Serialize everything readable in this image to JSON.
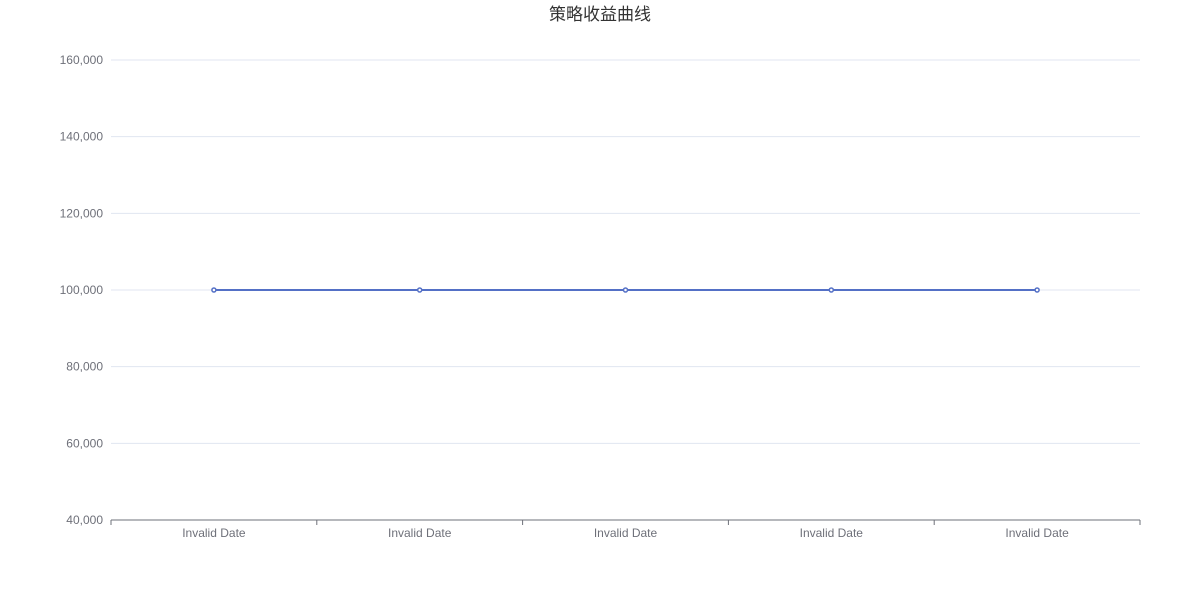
{
  "chart_data": {
    "type": "line",
    "title": "策略收益曲线",
    "xlabel": "",
    "ylabel": "",
    "categories": [
      "Invalid Date",
      "Invalid Date",
      "Invalid Date",
      "Invalid Date",
      "Invalid Date"
    ],
    "series": [
      {
        "values": [
          100000,
          100000,
          100000,
          100000,
          100000
        ]
      }
    ],
    "ylim": [
      40000,
      160000
    ],
    "yticks": [
      "40,000",
      "60,000",
      "80,000",
      "100,000",
      "120,000",
      "140,000",
      "160,000"
    ],
    "grid": true,
    "legend": "none",
    "colors": {
      "line": "#5470c6",
      "point_fill": "#ffffff",
      "grid": "#e0e6f1",
      "axis": "#6e7079",
      "title": "#333333"
    }
  }
}
